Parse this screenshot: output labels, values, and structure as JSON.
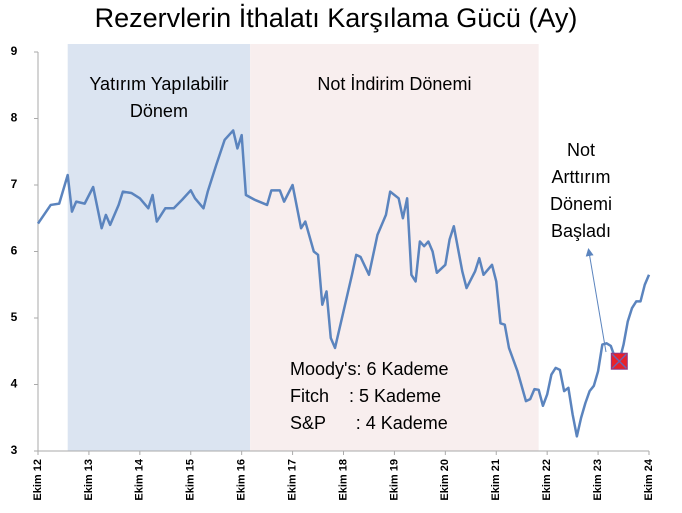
{
  "chart_data": {
    "type": "line",
    "title": "Rezervlerin İthalatı Karşılama Gücü (Ay)",
    "x": [
      0,
      3,
      5,
      7,
      8,
      9,
      11,
      13,
      15,
      16,
      17,
      19,
      20,
      22,
      24,
      26,
      27,
      28,
      30,
      32,
      34,
      36,
      37,
      39,
      40,
      42,
      44,
      46,
      47,
      48,
      49,
      51,
      54,
      55,
      57,
      58,
      60,
      62,
      63,
      65,
      66,
      67,
      68,
      69,
      70,
      72,
      74,
      75,
      76,
      78,
      80,
      82,
      83,
      85,
      86,
      87,
      88,
      89,
      90,
      91,
      92,
      93,
      94,
      96,
      97,
      98,
      100,
      101,
      103,
      104,
      105,
      107,
      108,
      109,
      110,
      111,
      113,
      115,
      116,
      117,
      118,
      119,
      120,
      121,
      122,
      123,
      124,
      125,
      126,
      127,
      128,
      129,
      130,
      131,
      132,
      133,
      134,
      135,
      136,
      137,
      138,
      139,
      140,
      141,
      142,
      143,
      144
    ],
    "values": [
      6.42,
      6.7,
      6.72,
      7.15,
      6.6,
      6.75,
      6.72,
      6.97,
      6.35,
      6.55,
      6.4,
      6.7,
      6.9,
      6.88,
      6.8,
      6.65,
      6.85,
      6.45,
      6.65,
      6.65,
      6.78,
      6.92,
      6.8,
      6.65,
      6.9,
      7.3,
      7.68,
      7.82,
      7.55,
      7.75,
      6.85,
      6.78,
      6.7,
      6.92,
      6.92,
      6.75,
      7.0,
      6.35,
      6.45,
      6.0,
      5.95,
      5.2,
      5.4,
      4.7,
      4.55,
      5.1,
      5.65,
      5.95,
      5.92,
      5.65,
      6.25,
      6.55,
      6.9,
      6.8,
      6.5,
      6.8,
      5.65,
      5.55,
      6.15,
      6.08,
      6.15,
      6.0,
      5.68,
      5.8,
      6.18,
      6.38,
      5.7,
      5.45,
      5.7,
      5.9,
      5.65,
      5.8,
      5.55,
      4.92,
      4.9,
      4.55,
      4.2,
      3.75,
      3.78,
      3.93,
      3.92,
      3.68,
      3.85,
      4.15,
      4.25,
      4.22,
      3.9,
      3.95,
      3.55,
      3.22,
      3.5,
      3.72,
      3.9,
      3.98,
      4.2,
      4.6,
      4.62,
      4.58,
      4.4,
      4.35,
      4.6,
      4.95,
      5.15,
      5.25,
      5.25,
      5.5,
      5.65
    ],
    "color": "#5b84be",
    "xlim": [
      0,
      144
    ],
    "xticks": [
      {
        "value": 0,
        "label": "Ekim 12"
      },
      {
        "value": 12,
        "label": "Ekim 13"
      },
      {
        "value": 24,
        "label": "Ekim 14"
      },
      {
        "value": 36,
        "label": "Ekim 15"
      },
      {
        "value": 48,
        "label": "Ekim 16"
      },
      {
        "value": 60,
        "label": "Ekim 17"
      },
      {
        "value": 72,
        "label": "Ekim 18"
      },
      {
        "value": 84,
        "label": "Ekim 19"
      },
      {
        "value": 96,
        "label": "Ekim 20"
      },
      {
        "value": 108,
        "label": "Ekim 21"
      },
      {
        "value": 120,
        "label": "Ekim 22"
      },
      {
        "value": 132,
        "label": "Ekim 23"
      },
      {
        "value": 144,
        "label": "Ekim 24"
      }
    ],
    "ylim": [
      3,
      9
    ],
    "yticks": [
      3,
      4,
      5,
      6,
      7,
      8,
      9
    ],
    "regions": [
      {
        "x": [
          7,
          50
        ],
        "color": "#dbe4f1",
        "label": [
          "Yatırım Yapılabilir",
          "Dönem"
        ]
      },
      {
        "x": [
          50,
          118
        ],
        "color": "#f8eeee",
        "label": [
          "Not İndirim Dönemi"
        ]
      }
    ],
    "ratings": [
      "Moody's: 6 Kademe",
      "Fitch    : 5 Kademe",
      "S&P      : 4 Kademe"
    ],
    "highlight": {
      "x": 137,
      "value": 4.35,
      "color": "#e8202a",
      "label": [
        "Not",
        "Arttırım",
        "Dönemi",
        "Başladı"
      ]
    }
  }
}
